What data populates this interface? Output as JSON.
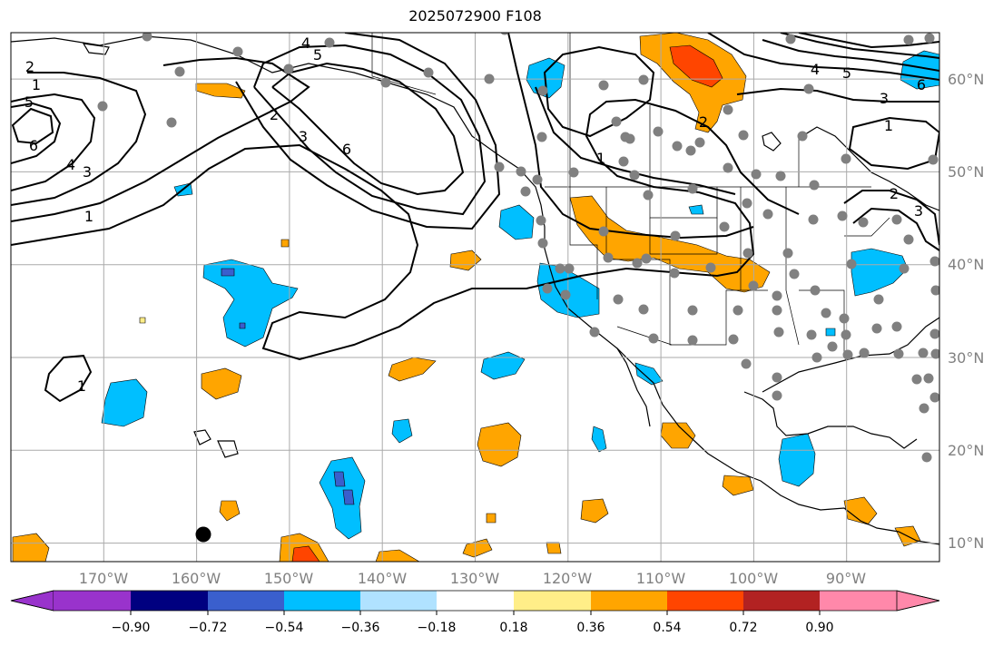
{
  "title": "2025072900 F108",
  "map": {
    "projection": "equirectangular",
    "extent": {
      "lon_min": -180,
      "lon_max": -80,
      "lat_min": 8,
      "lat_max": 65
    },
    "lon_labels": [
      "170°W",
      "160°W",
      "150°W",
      "140°W",
      "130°W",
      "120°W",
      "110°W",
      "100°W",
      "90°W"
    ],
    "lat_labels": [
      "60°N",
      "50°N",
      "40°N",
      "30°N",
      "20°N",
      "10°N"
    ],
    "gridlines": true,
    "ocean_color": "#ffffff",
    "land_outline_color": "#000000"
  },
  "colorbar": {
    "orientation": "horizontal",
    "extend": "both",
    "colors": [
      "#9933cc",
      "#000080",
      "#3a5fcd",
      "#00bfff",
      "#b0e2ff",
      "#ffffff",
      "#ffee88",
      "#ffa500",
      "#ff4500",
      "#b22222",
      "#ff88aa"
    ],
    "tick_labels": [
      "−0.90",
      "−0.72",
      "−0.54",
      "−0.36",
      "−0.18",
      "0.18",
      "0.36",
      "0.54",
      "0.72",
      "0.90"
    ]
  },
  "contour_labels": [
    "2",
    "5",
    "6",
    "4",
    "3",
    "1",
    "5",
    "4",
    "3",
    "2",
    "6",
    "1",
    "4",
    "5",
    "3",
    "6",
    "1",
    "2",
    "3",
    "2",
    "1",
    "1"
  ],
  "station_color": "#808080",
  "marker_color": "#000000"
}
